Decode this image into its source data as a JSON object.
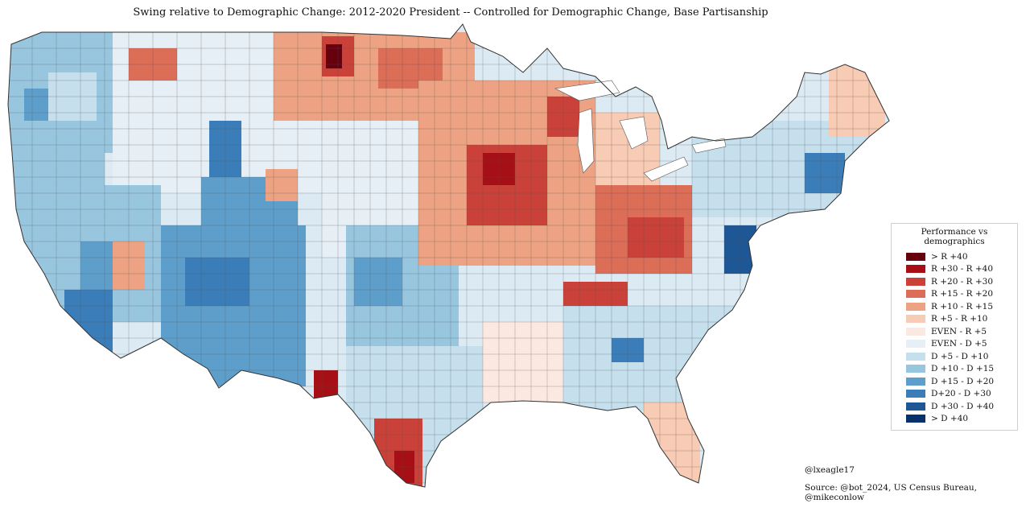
{
  "title": "Swing relative to Demographic Change: 2012-2020 President -- Controlled for Demographic Change, Base Partisanship",
  "legend": {
    "title": "Performance vs demographics",
    "items": [
      {
        "label": "> R +40",
        "color": "#67000d"
      },
      {
        "label": "R +30 - R +40",
        "color": "#a50f15"
      },
      {
        "label": "R +20 - R +30",
        "color": "#c94139"
      },
      {
        "label": "R +15 - R +20",
        "color": "#dc6e57"
      },
      {
        "label": "R +10 - R +15",
        "color": "#eda283"
      },
      {
        "label": "R +5 - R +10",
        "color": "#f7cbb4"
      },
      {
        "label": "EVEN - R +5",
        "color": "#fbe9e1"
      },
      {
        "label": "EVEN - D +5",
        "color": "#e5eff5"
      },
      {
        "label": "D +5 - D +10",
        "color": "#c5dfec"
      },
      {
        "label": "D +10 - D +15",
        "color": "#98c6df"
      },
      {
        "label": "D +15 - D +20",
        "color": "#5d9ecb"
      },
      {
        "label": "D+20 - D +30",
        "color": "#3a7db9"
      },
      {
        "label": "D +30 - D +40",
        "color": "#1d5796"
      },
      {
        "label": "> D +40",
        "color": "#08306b"
      }
    ]
  },
  "credits": {
    "handle": "@lxeagle17",
    "source": "Source: @bot_2024, US Census Bureau, @mikeconlow"
  }
}
